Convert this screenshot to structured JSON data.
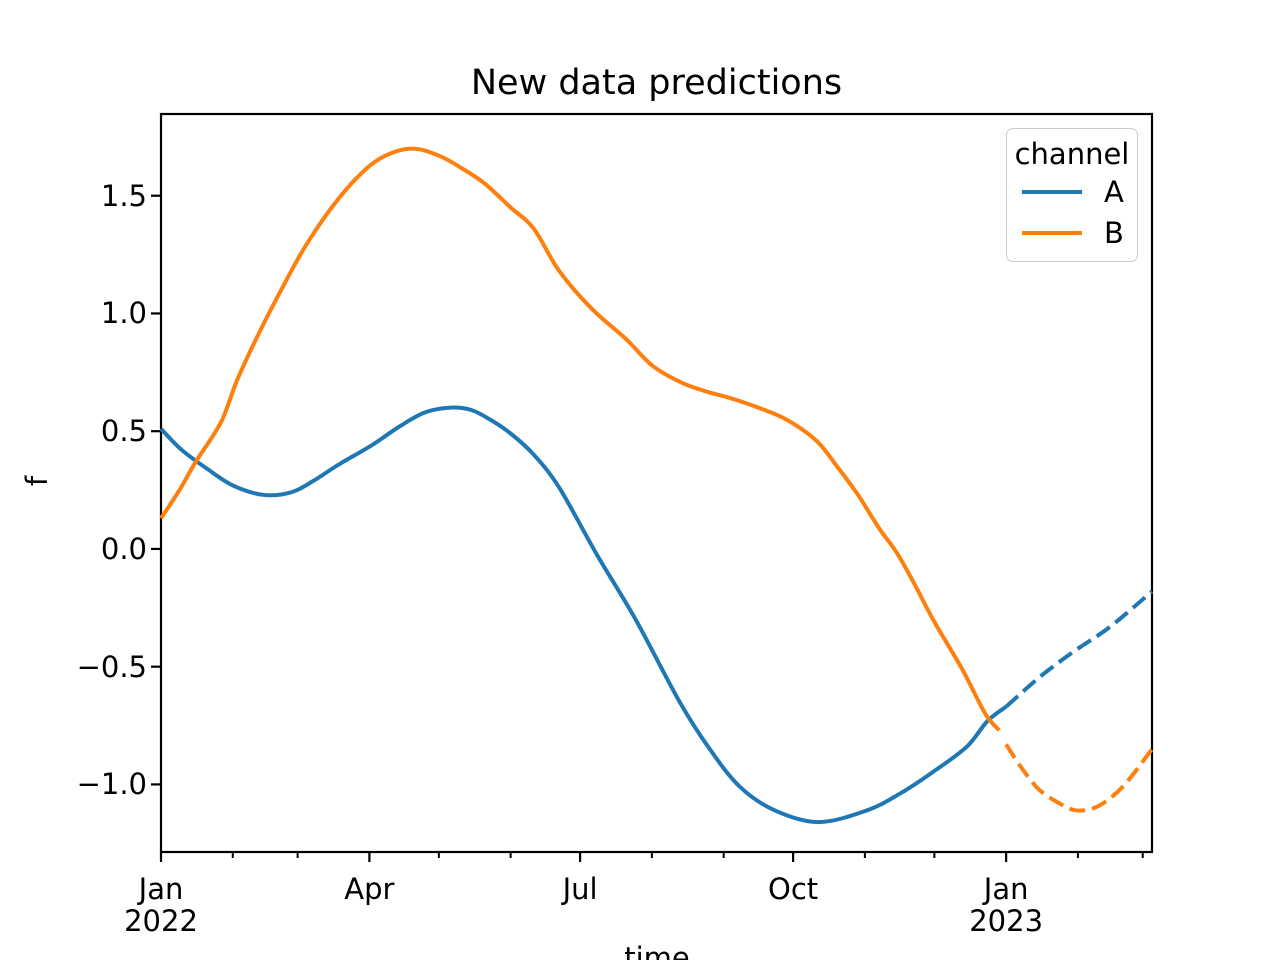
{
  "figure": {
    "background": "#ffffff"
  },
  "chart_data": {
    "type": "line",
    "title": "New data predictions",
    "xlabel": "time",
    "ylabel": "f",
    "grid": false,
    "legend": {
      "title": "channel",
      "position": "upper right",
      "entries": [
        {
          "label": "A",
          "color": "#1f77b4"
        },
        {
          "label": "B",
          "color": "#ff7f0e"
        }
      ]
    },
    "x_axis": {
      "unit": "days since 2022-01-01",
      "lim": [
        0,
        428
      ],
      "major_ticks": [
        {
          "day": 0,
          "label": "Jan",
          "year": "2022"
        },
        {
          "day": 90,
          "label": "Apr"
        },
        {
          "day": 181,
          "label": "Jul"
        },
        {
          "day": 273,
          "label": "Oct"
        },
        {
          "day": 365,
          "label": "Jan",
          "year": "2023"
        }
      ],
      "minor_tick_days": [
        31,
        59,
        120,
        151,
        212,
        243,
        304,
        334,
        396,
        424
      ]
    },
    "y_axis": {
      "lim": [
        -1.287,
        1.847
      ],
      "ticks": [
        {
          "value": 1.5,
          "label": "1.5"
        },
        {
          "value": 1.0,
          "label": "1.0"
        },
        {
          "value": 0.5,
          "label": "0.5"
        },
        {
          "value": 0.0,
          "label": "0.0"
        },
        {
          "value": -0.5,
          "label": "−0.5"
        },
        {
          "value": -1.0,
          "label": "−1.0"
        }
      ]
    },
    "series": [
      {
        "name": "A observed",
        "channel": "A",
        "segment": "observed",
        "color": "#1f77b4",
        "style": "solid",
        "points": [
          [
            0,
            0.51
          ],
          [
            9,
            0.42
          ],
          [
            20,
            0.34
          ],
          [
            31,
            0.27
          ],
          [
            44,
            0.23
          ],
          [
            56,
            0.24
          ],
          [
            66,
            0.29
          ],
          [
            77,
            0.36
          ],
          [
            91,
            0.44
          ],
          [
            103,
            0.52
          ],
          [
            114,
            0.58
          ],
          [
            125,
            0.6
          ],
          [
            134,
            0.59
          ],
          [
            142,
            0.55
          ],
          [
            151,
            0.49
          ],
          [
            161,
            0.4
          ],
          [
            172,
            0.26
          ],
          [
            188,
            -0.02
          ],
          [
            205,
            -0.3
          ],
          [
            224,
            -0.65
          ],
          [
            237,
            -0.85
          ],
          [
            250,
            -1.01
          ],
          [
            265,
            -1.11
          ],
          [
            284,
            -1.16
          ],
          [
            305,
            -1.11
          ],
          [
            319,
            -1.04
          ],
          [
            333,
            -0.95
          ],
          [
            348,
            -0.84
          ],
          [
            357,
            -0.73
          ],
          [
            365,
            -0.67
          ]
        ]
      },
      {
        "name": "A forecast",
        "channel": "A",
        "segment": "forecast",
        "color": "#1f77b4",
        "style": "dashed",
        "points": [
          [
            365,
            -0.67
          ],
          [
            380,
            -0.54
          ],
          [
            395,
            -0.43
          ],
          [
            410,
            -0.33
          ],
          [
            428,
            -0.18
          ]
        ]
      },
      {
        "name": "B observed",
        "channel": "B",
        "segment": "observed",
        "color": "#ff7f0e",
        "style": "solid",
        "points": [
          [
            0,
            0.13
          ],
          [
            8,
            0.25
          ],
          [
            15,
            0.37
          ],
          [
            26,
            0.54
          ],
          [
            33,
            0.72
          ],
          [
            43,
            0.93
          ],
          [
            53,
            1.12
          ],
          [
            62,
            1.28
          ],
          [
            73,
            1.44
          ],
          [
            84,
            1.57
          ],
          [
            95,
            1.66
          ],
          [
            108,
            1.7
          ],
          [
            120,
            1.67
          ],
          [
            131,
            1.61
          ],
          [
            140,
            1.55
          ],
          [
            151,
            1.45
          ],
          [
            161,
            1.36
          ],
          [
            172,
            1.18
          ],
          [
            186,
            1.02
          ],
          [
            201,
            0.89
          ],
          [
            212,
            0.78
          ],
          [
            224,
            0.71
          ],
          [
            235,
            0.67
          ],
          [
            246,
            0.64
          ],
          [
            258,
            0.6
          ],
          [
            270,
            0.55
          ],
          [
            283,
            0.46
          ],
          [
            292,
            0.35
          ],
          [
            301,
            0.23
          ],
          [
            310,
            0.09
          ],
          [
            318,
            -0.02
          ],
          [
            326,
            -0.16
          ],
          [
            334,
            -0.31
          ],
          [
            346,
            -0.51
          ],
          [
            356,
            -0.7
          ],
          [
            362,
            -0.77
          ]
        ]
      },
      {
        "name": "B forecast",
        "channel": "B",
        "segment": "forecast",
        "color": "#ff7f0e",
        "style": "dashed",
        "points": [
          [
            365,
            -0.83
          ],
          [
            371,
            -0.92
          ],
          [
            379,
            -1.02
          ],
          [
            388,
            -1.08
          ],
          [
            395,
            -1.11
          ],
          [
            403,
            -1.1
          ],
          [
            411,
            -1.05
          ],
          [
            418,
            -0.98
          ],
          [
            428,
            -0.85
          ]
        ]
      }
    ]
  }
}
